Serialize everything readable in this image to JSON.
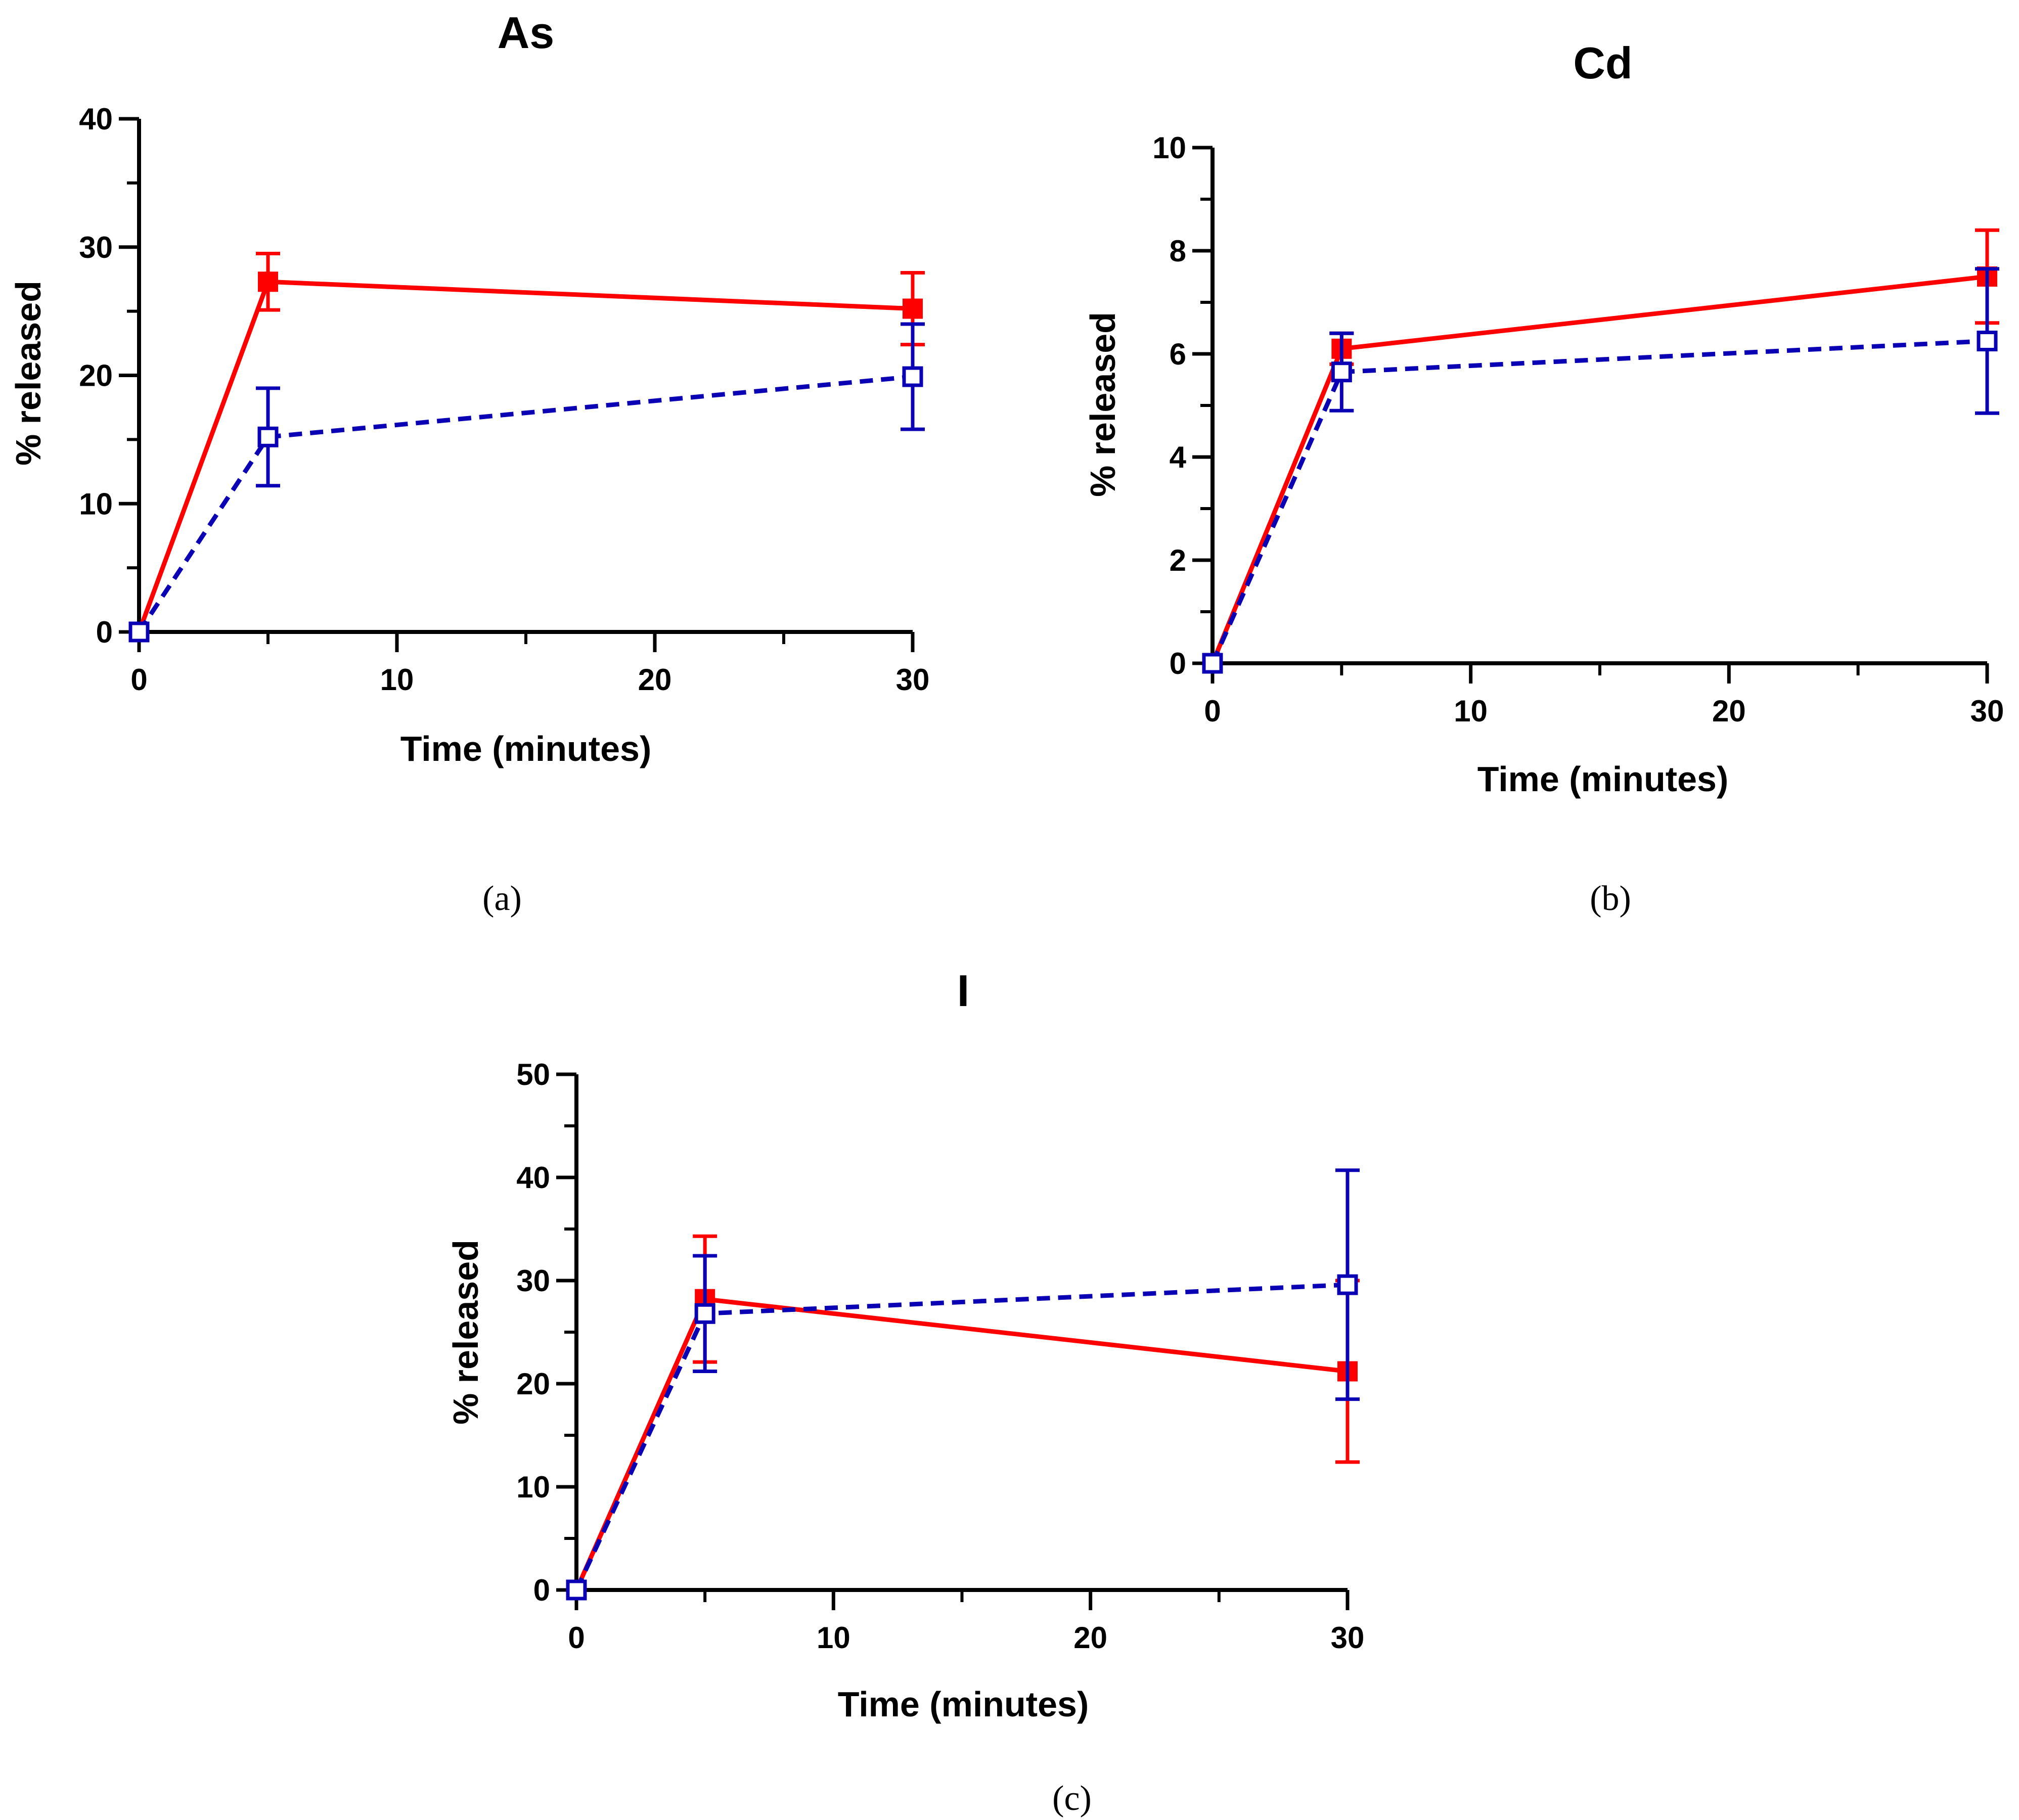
{
  "chart_data": [
    {
      "type": "line",
      "title": "As",
      "panel_label": "(a)",
      "xlabel": "Time (minutes)",
      "ylabel": "% released",
      "xlim": [
        0,
        30
      ],
      "ylim": [
        0,
        40
      ],
      "x_ticks": [
        "0",
        "10",
        "20",
        "30"
      ],
      "y_ticks": [
        "0",
        "10",
        "20",
        "30",
        "40"
      ],
      "series": [
        {
          "name": "series-filled",
          "color": "#ff0000",
          "line": "solid",
          "marker": "filled-square",
          "x": [
            0,
            5,
            30
          ],
          "y": [
            0,
            27.3,
            25.2
          ],
          "err": [
            0,
            2.2,
            2.8
          ]
        },
        {
          "name": "series-open",
          "color": "#0a00b4",
          "line": "dashed",
          "marker": "open-square",
          "x": [
            0,
            5,
            30
          ],
          "y": [
            0,
            15.2,
            19.9
          ],
          "err": [
            0,
            3.8,
            4.1
          ]
        }
      ]
    },
    {
      "type": "line",
      "title": "Cd",
      "panel_label": "(b)",
      "xlabel": "Time (minutes)",
      "ylabel": "% released",
      "xlim": [
        0,
        30
      ],
      "ylim": [
        0,
        10
      ],
      "x_ticks": [
        "0",
        "10",
        "20",
        "30"
      ],
      "y_ticks": [
        "0",
        "2",
        "4",
        "6",
        "8",
        "10"
      ],
      "series": [
        {
          "name": "series-filled",
          "color": "#ff0000",
          "line": "solid",
          "marker": "filled-square",
          "x": [
            0,
            5,
            30
          ],
          "y": [
            0,
            6.1,
            7.5
          ],
          "err": [
            0,
            0.3,
            0.9
          ]
        },
        {
          "name": "series-open",
          "color": "#0a00b4",
          "line": "dashed",
          "marker": "open-square",
          "x": [
            0,
            5,
            30
          ],
          "y": [
            0,
            5.65,
            6.25
          ],
          "err": [
            0,
            0.75,
            1.4
          ]
        }
      ]
    },
    {
      "type": "line",
      "title": "I",
      "panel_label": "(c)",
      "xlabel": "Time (minutes)",
      "ylabel": "% released",
      "xlim": [
        0,
        30
      ],
      "ylim": [
        0,
        50
      ],
      "x_ticks": [
        "0",
        "10",
        "20",
        "30"
      ],
      "y_ticks": [
        "0",
        "10",
        "20",
        "30",
        "40",
        "50"
      ],
      "series": [
        {
          "name": "series-filled",
          "color": "#ff0000",
          "line": "solid",
          "marker": "filled-square",
          "x": [
            0,
            5,
            30
          ],
          "y": [
            0,
            28.2,
            21.2
          ],
          "err": [
            0,
            6.1,
            8.8
          ]
        },
        {
          "name": "series-open",
          "color": "#0a00b4",
          "line": "dashed",
          "marker": "open-square",
          "x": [
            0,
            5,
            30
          ],
          "y": [
            0,
            26.8,
            29.6
          ],
          "err": [
            0,
            5.6,
            11.1
          ]
        }
      ]
    }
  ]
}
